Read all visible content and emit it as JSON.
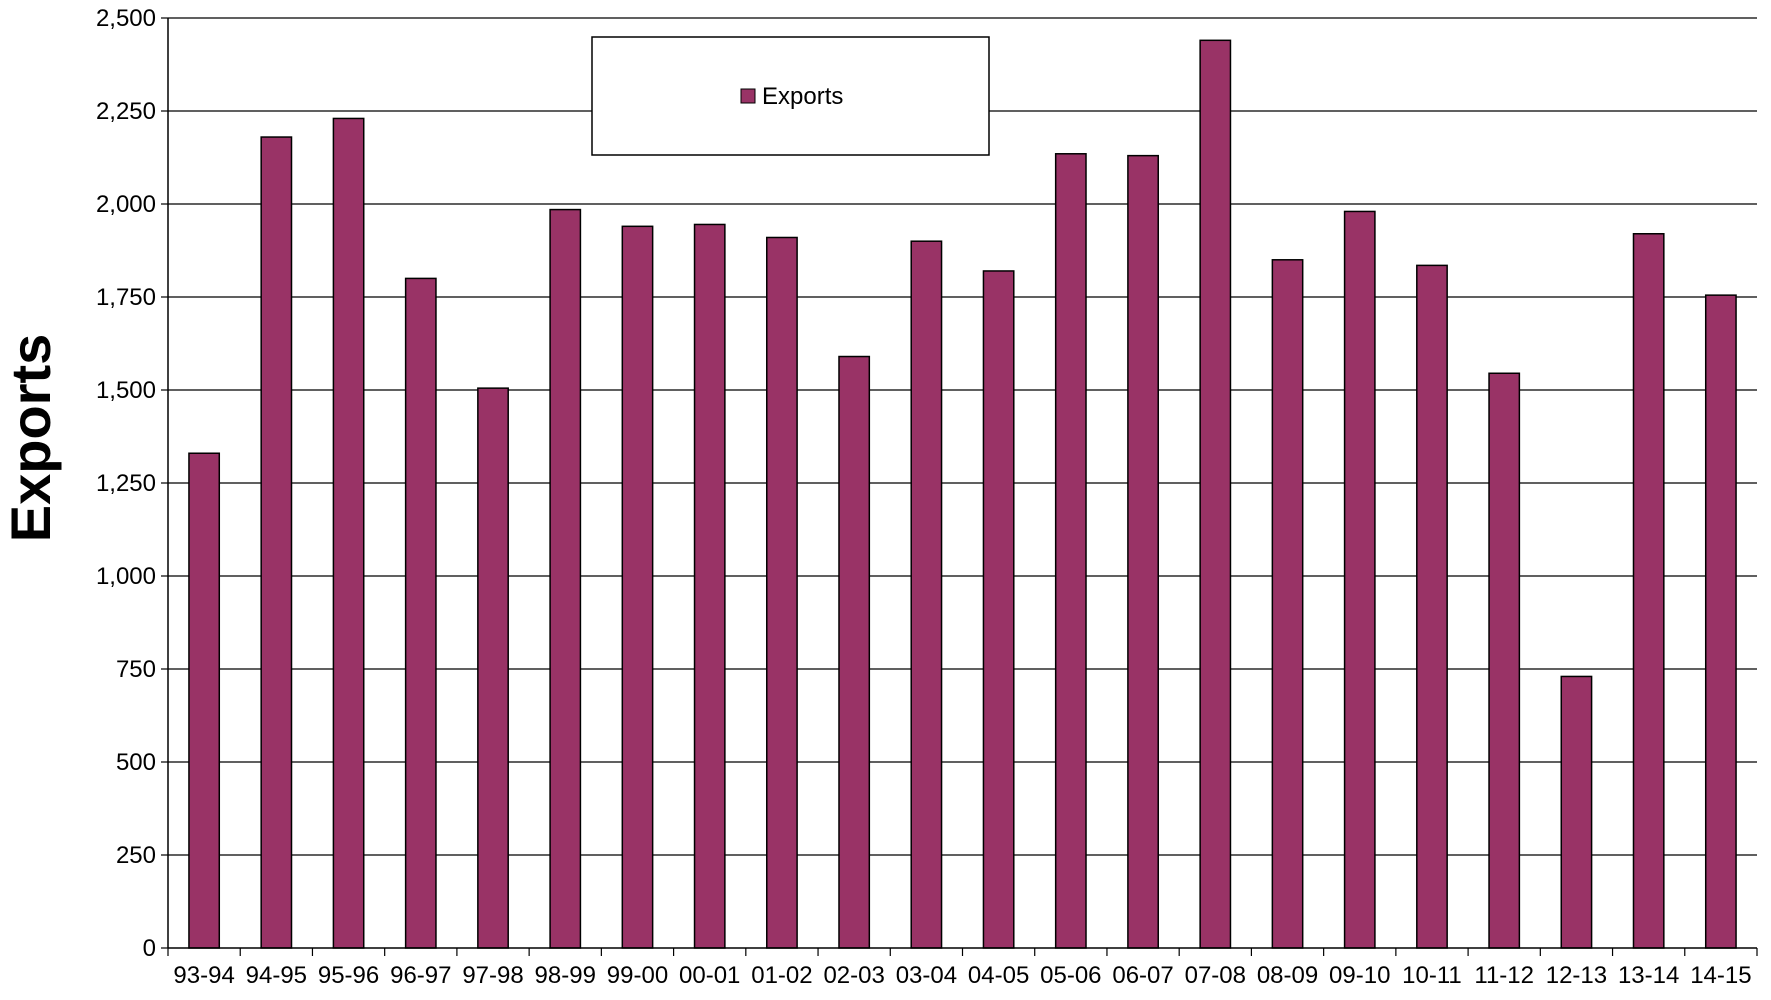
{
  "chart_data": {
    "type": "bar",
    "title": "",
    "xlabel": "",
    "ylabel": "Exports",
    "ylim": [
      0,
      2500
    ],
    "yticks": [
      0,
      250,
      500,
      750,
      1000,
      1250,
      1500,
      1750,
      2000,
      2250,
      2500
    ],
    "ytick_labels": [
      "0",
      "250",
      "500",
      "750",
      "1,000",
      "1,250",
      "1,500",
      "1,750",
      "2,000",
      "2,250",
      "2,500"
    ],
    "grid": true,
    "legend_position": "top-center",
    "categories": [
      "93-94",
      "94-95",
      "95-96",
      "96-97",
      "97-98",
      "98-99",
      "99-00",
      "00-01",
      "01-02",
      "02-03",
      "03-04",
      "04-05",
      "05-06",
      "06-07",
      "07-08",
      "08-09",
      "09-10",
      "10-11",
      "11-12",
      "12-13",
      "13-14",
      "14-15"
    ],
    "series": [
      {
        "name": "Exports",
        "color": "#993366",
        "values": [
          1330,
          2180,
          2230,
          1800,
          1505,
          1985,
          1940,
          1945,
          1910,
          1590,
          1900,
          1820,
          2135,
          2130,
          2440,
          1850,
          1980,
          1835,
          1545,
          730,
          1920,
          1755
        ]
      }
    ]
  }
}
